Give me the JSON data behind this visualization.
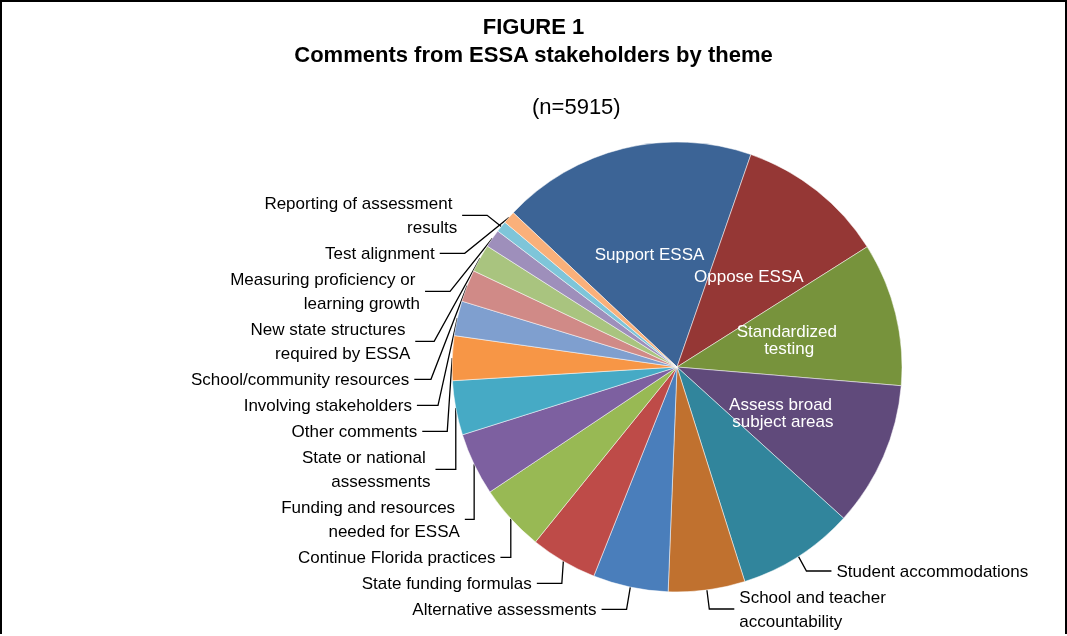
{
  "chart_data": {
    "type": "pie",
    "title": "FIGURE 1",
    "subtitle": "Comments from ESSA stakeholders by theme",
    "annotations": [
      "(n=5915)"
    ],
    "categories": [
      "Support ESSA",
      "Oppose ESSA",
      "Standardized testing",
      "Assess broad subject areas",
      "Student accommodations",
      "School and teacher accountability",
      "Alternative assessments",
      "State funding formulas",
      "Continue Florida practices",
      "Funding and resources needed for ESSA",
      "State or national assessments",
      "Other comments",
      "Involving stakeholders",
      "School/community resources",
      "New state structures required by ESSA",
      "Measuring proficiency or learning growth",
      "Reporting of assessment results",
      "Test alignment"
    ],
    "values": [
      18.3,
      10.7,
      10.3,
      10.4,
      8.4,
      5.5,
      5.4,
      4.8,
      4.8,
      4.5,
      3.9,
      3.2,
      2.5,
      2.3,
      2.0,
      1.3,
      0.8,
      0.9
    ],
    "colors": [
      "#3c6496",
      "#953735",
      "#77933c",
      "#604a7b",
      "#31859c",
      "#c0712f",
      "#4a7ebb",
      "#be4b48",
      "#98b954",
      "#7d60a0",
      "#46aac5",
      "#f79646",
      "#7f9fcf",
      "#d08a87",
      "#a9c47f",
      "#9e8fbb",
      "#7ec5d9",
      "#fab07a"
    ],
    "legend": false
  }
}
